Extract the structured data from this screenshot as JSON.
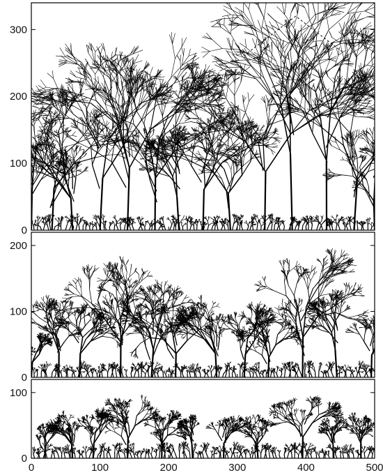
{
  "chart_data": [
    {
      "type": "scatter",
      "panel": "top",
      "description_visible_text": "",
      "xlim": [
        0,
        500
      ],
      "ylim": [
        0,
        340
      ],
      "yticks": [
        0,
        100,
        200,
        300
      ],
      "ytick_labels": [
        "0",
        "100",
        "200",
        "300"
      ],
      "grid": false,
      "clusters": [
        {
          "x": 0,
          "y": 135
        },
        {
          "x": 30,
          "y": 165
        },
        {
          "x": 60,
          "y": 125
        },
        {
          "x": 100,
          "y": 205
        },
        {
          "x": 140,
          "y": 245
        },
        {
          "x": 180,
          "y": 205
        },
        {
          "x": 215,
          "y": 130
        },
        {
          "x": 250,
          "y": 160
        },
        {
          "x": 290,
          "y": 145
        },
        {
          "x": 340,
          "y": 230
        },
        {
          "x": 380,
          "y": 300
        },
        {
          "x": 430,
          "y": 270
        },
        {
          "x": 470,
          "y": 200
        },
        {
          "x": 500,
          "y": 115
        }
      ],
      "annotation": {
        "style": "dashed",
        "points": [
          [
            315,
            265
          ],
          [
            385,
            320
          ],
          [
            455,
            265
          ]
        ]
      }
    },
    {
      "type": "scatter",
      "panel": "middle",
      "xlim": [
        0,
        500
      ],
      "ylim": [
        0,
        220
      ],
      "yticks": [
        0,
        100,
        200
      ],
      "ytick_labels": [
        "0",
        "100",
        "200"
      ],
      "grid": false,
      "clusters": [
        {
          "x": 0,
          "y": 60
        },
        {
          "x": 40,
          "y": 100
        },
        {
          "x": 70,
          "y": 95
        },
        {
          "x": 130,
          "y": 140
        },
        {
          "x": 175,
          "y": 110
        },
        {
          "x": 210,
          "y": 95
        },
        {
          "x": 270,
          "y": 95
        },
        {
          "x": 310,
          "y": 90
        },
        {
          "x": 345,
          "y": 80
        },
        {
          "x": 395,
          "y": 160
        },
        {
          "x": 445,
          "y": 110
        },
        {
          "x": 495,
          "y": 90
        }
      ]
    },
    {
      "type": "scatter",
      "panel": "bottom",
      "xlim": [
        0,
        500
      ],
      "ylim": [
        0,
        120
      ],
      "yticks": [
        0,
        100
      ],
      "ytick_labels": [
        "0",
        "100"
      ],
      "xticks": [
        0,
        100,
        200,
        300,
        400,
        500
      ],
      "xtick_labels": [
        "0",
        "100",
        "200",
        "300",
        "400",
        "500"
      ],
      "grid": false,
      "clusters": [
        {
          "x": 20,
          "y": 45
        },
        {
          "x": 60,
          "y": 55
        },
        {
          "x": 90,
          "y": 60
        },
        {
          "x": 140,
          "y": 80
        },
        {
          "x": 190,
          "y": 60
        },
        {
          "x": 235,
          "y": 55
        },
        {
          "x": 280,
          "y": 60
        },
        {
          "x": 330,
          "y": 55
        },
        {
          "x": 395,
          "y": 85
        },
        {
          "x": 440,
          "y": 50
        },
        {
          "x": 480,
          "y": 55
        }
      ]
    }
  ]
}
